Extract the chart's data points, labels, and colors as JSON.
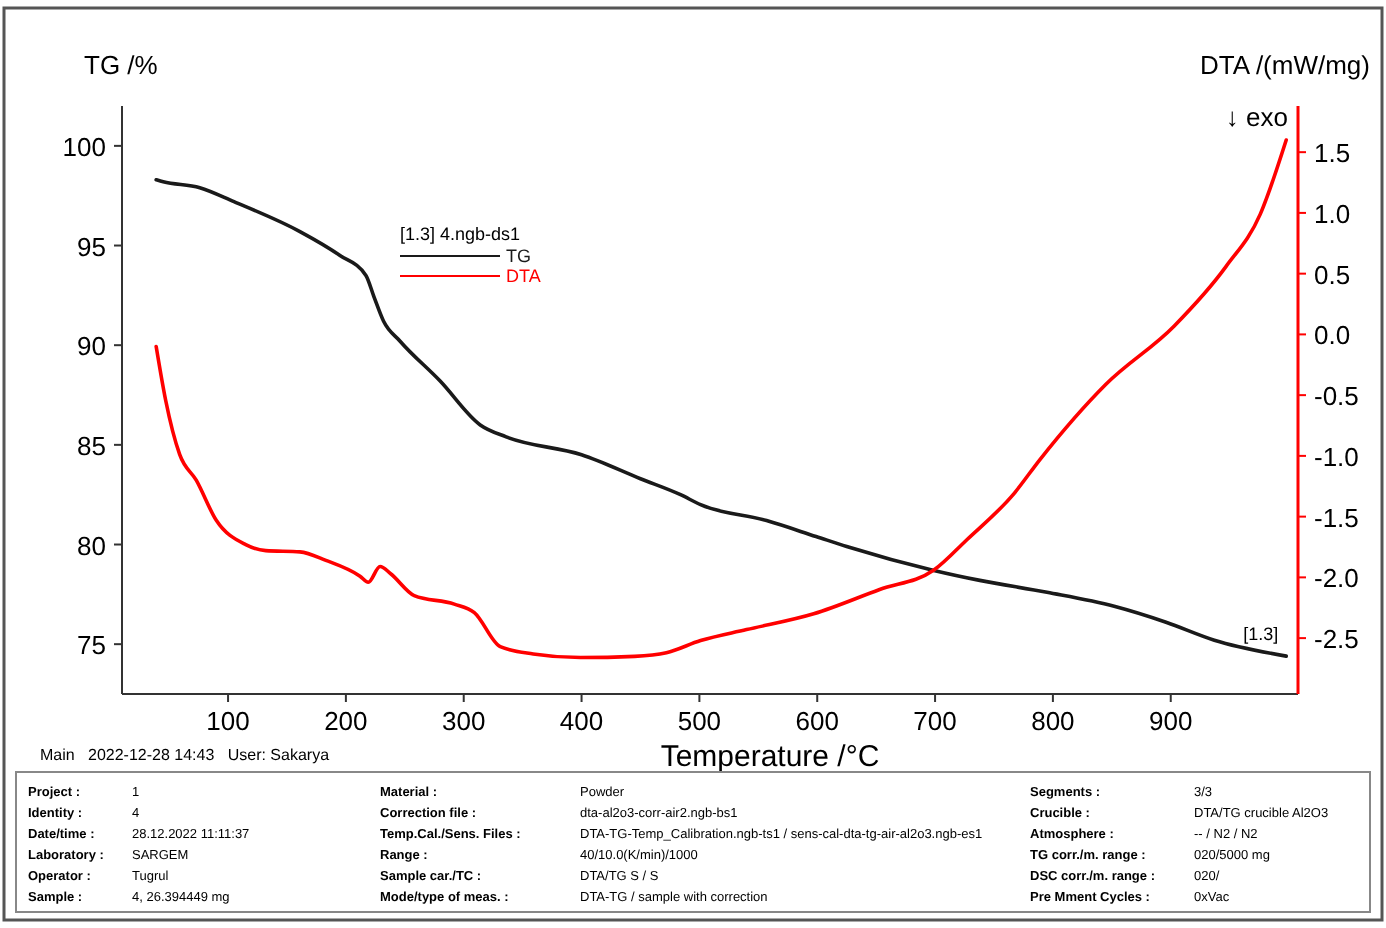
{
  "chart_data": {
    "type": "line",
    "xlabel": "Temperature /°C",
    "ylabel": "TG /%",
    "y2label": "DTA /(mW/mg)",
    "legend_title": "[1.3] 4.ngb-ds1",
    "legend": "top",
    "grid": false,
    "xlim": [
      10,
      1008
    ],
    "xticks": [
      100,
      200,
      300,
      400,
      500,
      600,
      700,
      800,
      900
    ],
    "ylim": [
      72.5,
      102
    ],
    "yticks": [
      75,
      80,
      85,
      90,
      95,
      100
    ],
    "y2lim": [
      -2.96,
      1.88
    ],
    "y2ticks": [
      {
        "value": -2.5,
        "label": "-2.5"
      },
      {
        "value": -2,
        "label": "-2.0"
      },
      {
        "value": -1.5,
        "label": "-1.5"
      },
      {
        "value": -1,
        "label": "-1.0"
      },
      {
        "value": -0.5,
        "label": "-0.5"
      },
      {
        "value": 0,
        "label": "0.0"
      },
      {
        "value": 0.5,
        "label": "0.5"
      },
      {
        "value": 1,
        "label": "1.0"
      },
      {
        "value": 1.5,
        "label": "1.5"
      }
    ],
    "series": [
      {
        "name": "TG",
        "color": "#1a1a1a",
        "x": [
          39,
          45,
          76,
          105,
          161,
          195,
          217,
          224,
          232,
          246,
          280,
          314,
          336,
          400,
          450,
          484,
          501,
          557,
          599,
          625,
          699,
          738,
          795,
          852,
          896,
          937,
          998
        ],
        "values": [
          98.3,
          98.2,
          97.9,
          97.2,
          95.7,
          94.5,
          93.5,
          92.4,
          91.2,
          90.2,
          88.2,
          86,
          85.4,
          84.5,
          83.3,
          82.5,
          82,
          81.2,
          80.4,
          79.9,
          78.7,
          78.2,
          77.6,
          76.9,
          76.1,
          75.2,
          74.4
        ]
      },
      {
        "name": "DTA",
        "color": "#ff0000",
        "axis": "y2",
        "x": [
          39,
          47,
          59,
          73,
          90,
          115,
          132,
          161,
          183,
          212,
          219,
          229,
          238,
          258,
          292,
          309,
          331,
          359,
          399,
          445,
          472,
          501,
          540,
          597,
          653,
          699,
          727,
          767,
          789,
          845,
          903,
          947,
          976,
          998
        ],
        "values": [
          -0.1,
          -0.54,
          -0.99,
          -1.2,
          -1.53,
          -1.73,
          -1.78,
          -1.79,
          -1.86,
          -1.99,
          -2.04,
          -1.91,
          -1.97,
          -2.15,
          -2.22,
          -2.29,
          -2.57,
          -2.63,
          -2.66,
          -2.65,
          -2.62,
          -2.52,
          -2.43,
          -2.3,
          -2.1,
          -1.94,
          -1.69,
          -1.31,
          -1.03,
          -0.41,
          0.07,
          0.56,
          0.99,
          1.6
        ]
      }
    ],
    "annotations": [
      "↓ exo",
      {
        "text": "[1.3]",
        "x": 998,
        "y": 74.4
      },
      "Main   2022-12-28 14:43   User: Sakarya",
      "Project : 1",
      "Identity : 4",
      "Date/time : 28.12.2022 11:11:37",
      "Laboratory : SARGEM",
      "Operator : Tugrul",
      "Sample : 4, 26.394449 mg",
      "Material : Powder",
      "Correction file : dta-al2o3-corr-air2.ngb-bs1",
      "Temp.Cal./Sens. Files : DTA-TG-Temp_Calibration.ngb-ts1 / sens-cal-dta-tg-air-al2o3.ngb-es1",
      "Range : 40/10.0(K/min)/1000",
      "Sample car./TC : DTA/TG S / S",
      "Mode/type of meas. : DTA-TG / sample with correction",
      "Segments : 3/3",
      "Crucible : DTA/TG crucible Al2O3",
      "Atmosphere : -- / N2 / N2",
      "TG corr./m. range : 020/5000 mg",
      "DSC corr./m. range : 020/",
      "Pre Mment Cycles : 0xVac"
    ]
  }
}
